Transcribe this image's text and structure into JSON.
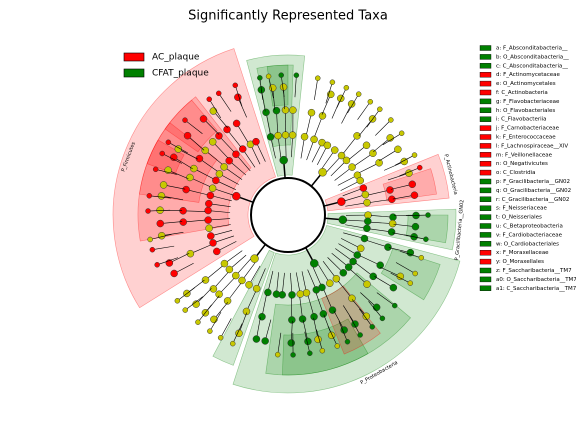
{
  "title": "Significantly Represented Taxa",
  "legend": [
    {
      "name": "AC_plaque",
      "color": "#ff0000"
    },
    {
      "name": "CFAT_plaque",
      "color": "#008000"
    }
  ],
  "sector_labels": [
    "P_Firmicutes",
    "P_Proteobacteria",
    "P_Actinobacteria",
    "P_Gracilibacteria__GN02"
  ],
  "key": [
    {
      "label": "a: F_Absconditabacteria__",
      "color": "#008000"
    },
    {
      "label": "b: O_Absconditabacteria__",
      "color": "#008000"
    },
    {
      "label": "c: C_Absconditabacteria__",
      "color": "#008000"
    },
    {
      "label": "d: F_Actinomycetaceae",
      "color": "#ff0000"
    },
    {
      "label": "e: O_Actinomycetales",
      "color": "#ff0000"
    },
    {
      "label": "f: C_Actinobacteria",
      "color": "#ff0000"
    },
    {
      "label": "g: F_Flavobacteriaceae",
      "color": "#008000"
    },
    {
      "label": "h: O_Flavobacteriales",
      "color": "#008000"
    },
    {
      "label": "i: C_Flavobacteriia",
      "color": "#008000"
    },
    {
      "label": "j: F_Carnobacteriaceae",
      "color": "#ff0000"
    },
    {
      "label": "k: F_Enterococcaceae",
      "color": "#ff0000"
    },
    {
      "label": "l: F_Lachnospiraceae__XIV",
      "color": "#ff0000"
    },
    {
      "label": "m: F_Veillonellaceae",
      "color": "#ff0000"
    },
    {
      "label": "n: O_Negativicutes",
      "color": "#ff0000"
    },
    {
      "label": "o: C_Clostridia",
      "color": "#ff0000"
    },
    {
      "label": "p: F_Gracilibacteria__GN02",
      "color": "#008000"
    },
    {
      "label": "q: O_Gracilibacteria__GN02",
      "color": "#008000"
    },
    {
      "label": "r: C_Gracilibacteria__GN02",
      "color": "#008000"
    },
    {
      "label": "s: F_Neisseriaceae",
      "color": "#008000"
    },
    {
      "label": "t: O_Neisseriales",
      "color": "#008000"
    },
    {
      "label": "u: C_Betaproteobacteria",
      "color": "#008000"
    },
    {
      "label": "v: F_Cardiobacteriaceae",
      "color": "#008000"
    },
    {
      "label": "w: O_Cardiobacteriales",
      "color": "#008000"
    },
    {
      "label": "x: F_Moraxellaceae",
      "color": "#ff0000"
    },
    {
      "label": "y: O_Moraxellales",
      "color": "#ff0000"
    },
    {
      "label": "z: F_Saccharibacteria__TM7",
      "color": "#008000"
    },
    {
      "label": "a0: O_Saccharibacteria__TM7",
      "color": "#008000"
    },
    {
      "label": "a1: C_Saccharibacteria__TM7",
      "color": "#008000"
    }
  ]
}
